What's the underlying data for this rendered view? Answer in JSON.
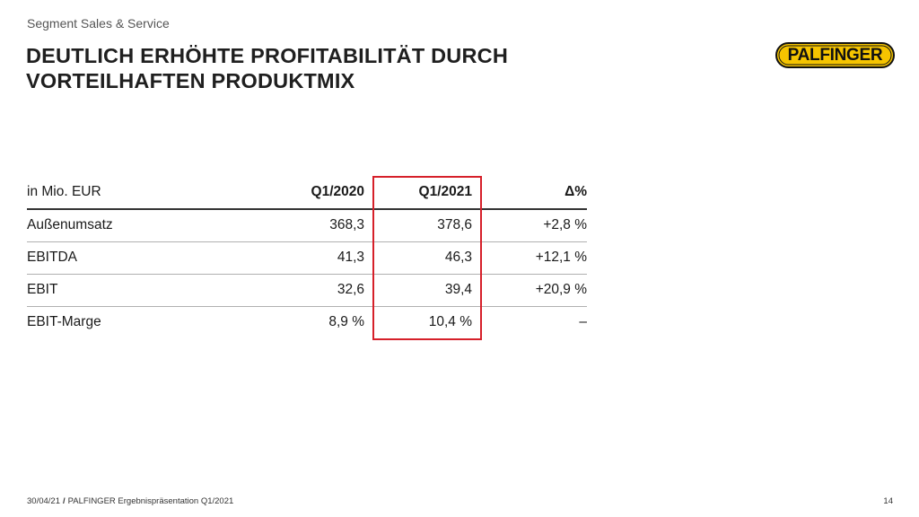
{
  "header": {
    "segment": "Segment Sales & Service",
    "title_line1": "DEUTLICH ERHÖHTE PROFITABILITÄT DURCH",
    "title_line2": "VORTEILHAFTEN PRODUKTMIX"
  },
  "logo": {
    "text": "PALFINGER",
    "color": "#f5c400"
  },
  "table": {
    "headers": [
      "in Mio. EUR",
      "Q1/2020",
      "Q1/2021",
      "Δ%"
    ],
    "rows": [
      [
        "Außenumsatz",
        "368,3",
        "378,6",
        "+2,8 %"
      ],
      [
        "EBITDA",
        "41,3",
        "46,3",
        "+12,1 %"
      ],
      [
        "EBIT",
        "32,6",
        "39,4",
        "+20,9 %"
      ],
      [
        "EBIT-Marge",
        "8,9 %",
        "10,4 %",
        "–"
      ]
    ],
    "highlight_color": "#d6202a"
  },
  "footer": {
    "date": "30/04/21",
    "separator": "/",
    "text": "PALFINGER Ergebnispräsentation Q1/2021",
    "page": "14"
  }
}
